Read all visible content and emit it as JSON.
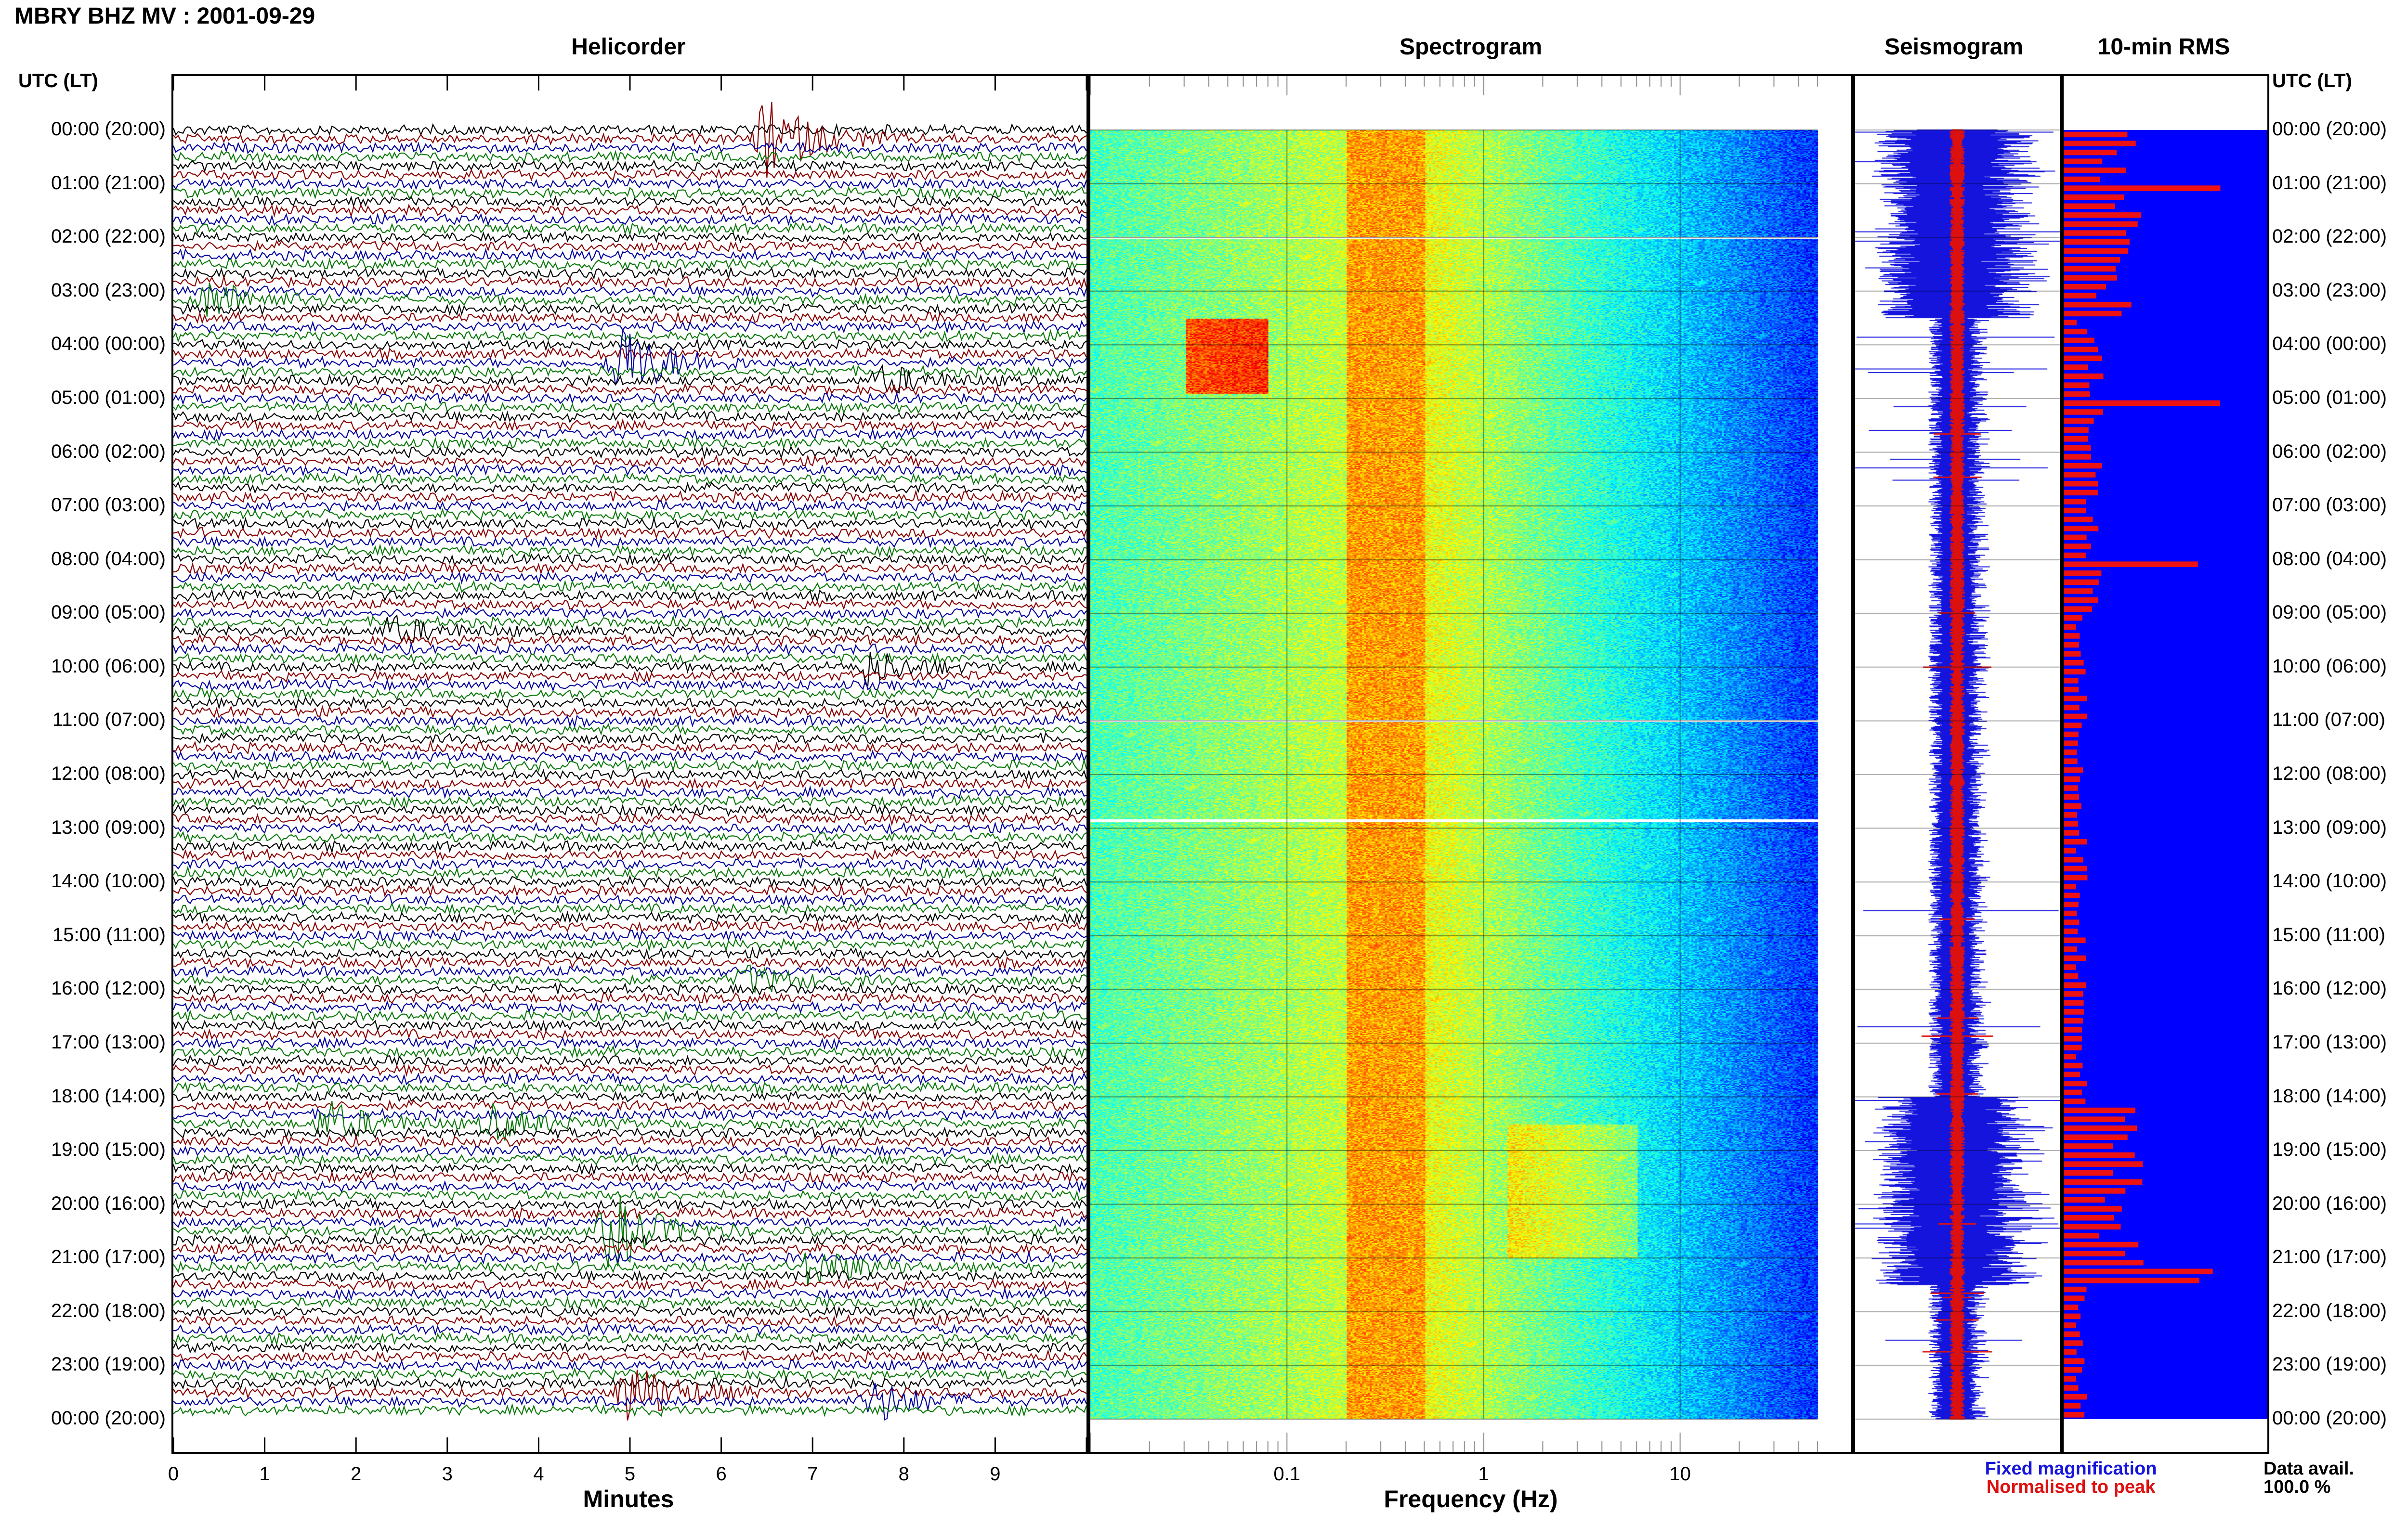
{
  "header": {
    "station_title": "MBRY BHZ MV : 2001-09-29",
    "utc_label_left": "UTC (LT)",
    "utc_label_right": "UTC (LT)"
  },
  "panels": {
    "helicorder_title": "Helicorder",
    "spectrogram_title": "Spectrogram",
    "seismogram_title": "Seismogram",
    "rms_title": "10-min RMS"
  },
  "axes": {
    "helicorder_xlabel": "Minutes",
    "helicorder_ticks": [
      "0",
      "1",
      "2",
      "3",
      "4",
      "5",
      "6",
      "7",
      "8",
      "9"
    ],
    "spectrogram_xlabel": "Frequency (Hz)",
    "spectrogram_ticks": [
      "0.1",
      "1",
      "10"
    ]
  },
  "time_labels": [
    "00:00 (20:00)",
    "01:00 (21:00)",
    "02:00 (22:00)",
    "03:00 (23:00)",
    "04:00 (00:00)",
    "05:00 (01:00)",
    "06:00 (02:00)",
    "07:00 (03:00)",
    "08:00 (04:00)",
    "09:00 (05:00)",
    "10:00 (06:00)",
    "11:00 (07:00)",
    "12:00 (08:00)",
    "13:00 (09:00)",
    "14:00 (10:00)",
    "15:00 (11:00)",
    "16:00 (12:00)",
    "17:00 (13:00)",
    "18:00 (14:00)",
    "19:00 (15:00)",
    "20:00 (16:00)",
    "21:00 (17:00)",
    "22:00 (18:00)",
    "23:00 (19:00)",
    "00:00 (20:00)"
  ],
  "legend": {
    "fixed_magnification": "Fixed magnification",
    "normalised_to_peak": "Normalised to peak",
    "data_avail_label": "Data avail.",
    "data_avail_value": "100.0 %"
  },
  "colors": {
    "trace_palette": [
      "#000000",
      "#8b0000",
      "#0000a0",
      "#0a7a0a"
    ],
    "fixed_magnification": "#1515dd",
    "normalised_to_peak": "#dd1111",
    "rms_background": "#0000ff",
    "rms_bars": "#ee1111"
  },
  "chart_data": [
    {
      "type": "line",
      "title": "Helicorder",
      "xlabel": "Minutes",
      "xlim": [
        0,
        10
      ],
      "rows": 144,
      "events": [
        {
          "hour": 0.3,
          "minute": 6.5,
          "amp": 6,
          "color": 1
        },
        {
          "hour": 1.0,
          "minute": 5.0,
          "amp": 3.5,
          "color": 0
        },
        {
          "hour": 1.5,
          "minute": 3.3,
          "amp": 3,
          "color": 3
        },
        {
          "hour": 2.2,
          "minute": 3.0,
          "amp": 2.5,
          "color": 3
        },
        {
          "hour": 3.2,
          "minute": 0.4,
          "amp": 3,
          "color": 3
        },
        {
          "hour": 4.3,
          "minute": 4.9,
          "amp": 6,
          "color": 2
        },
        {
          "hour": 4.5,
          "minute": 7.8,
          "amp": 2,
          "color": 0
        },
        {
          "hour": 7.4,
          "minute": 4.7,
          "amp": 4,
          "color": 3
        },
        {
          "hour": 9.3,
          "minute": 2.4,
          "amp": 2,
          "color": 0
        },
        {
          "hour": 10.0,
          "minute": 7.6,
          "amp": 2.5,
          "color": 0
        },
        {
          "hour": 16.0,
          "minute": 6.3,
          "amp": 2,
          "color": 3
        },
        {
          "hour": 18.3,
          "minute": 1.7,
          "amp": 3,
          "color": 3
        },
        {
          "hour": 18.6,
          "minute": 3.5,
          "amp": 2.5,
          "color": 3
        },
        {
          "hour": 20.3,
          "minute": 4.8,
          "amp": 6,
          "color": 3
        },
        {
          "hour": 21.3,
          "minute": 7.0,
          "amp": 3,
          "color": 3
        },
        {
          "hour": 23.4,
          "minute": 5.0,
          "amp": 5,
          "color": 1
        },
        {
          "hour": 23.7,
          "minute": 7.7,
          "amp": 3,
          "color": 2
        }
      ]
    },
    {
      "type": "heatmap",
      "title": "Spectrogram",
      "xlabel": "Frequency (Hz)",
      "x_scale": "log",
      "xlim": [
        0.01,
        50
      ],
      "x_ticks": [
        0.1,
        1,
        10
      ],
      "y_range_utc_hours": [
        0,
        24
      ],
      "gaps_utc_hours": [
        2.0,
        11.0,
        12.85
      ],
      "peak_band_hz": [
        0.2,
        0.5
      ]
    },
    {
      "type": "line",
      "title": "Seismogram",
      "series": [
        {
          "name": "Fixed magnification"
        },
        {
          "name": "Normalised to peak"
        }
      ]
    },
    {
      "type": "bar",
      "title": "10-min RMS",
      "y_range_utc_hours": [
        0,
        24
      ],
      "bins": 144,
      "spikes_utc_hours": [
        0.95,
        4.95,
        7.95,
        21.25
      ]
    }
  ]
}
